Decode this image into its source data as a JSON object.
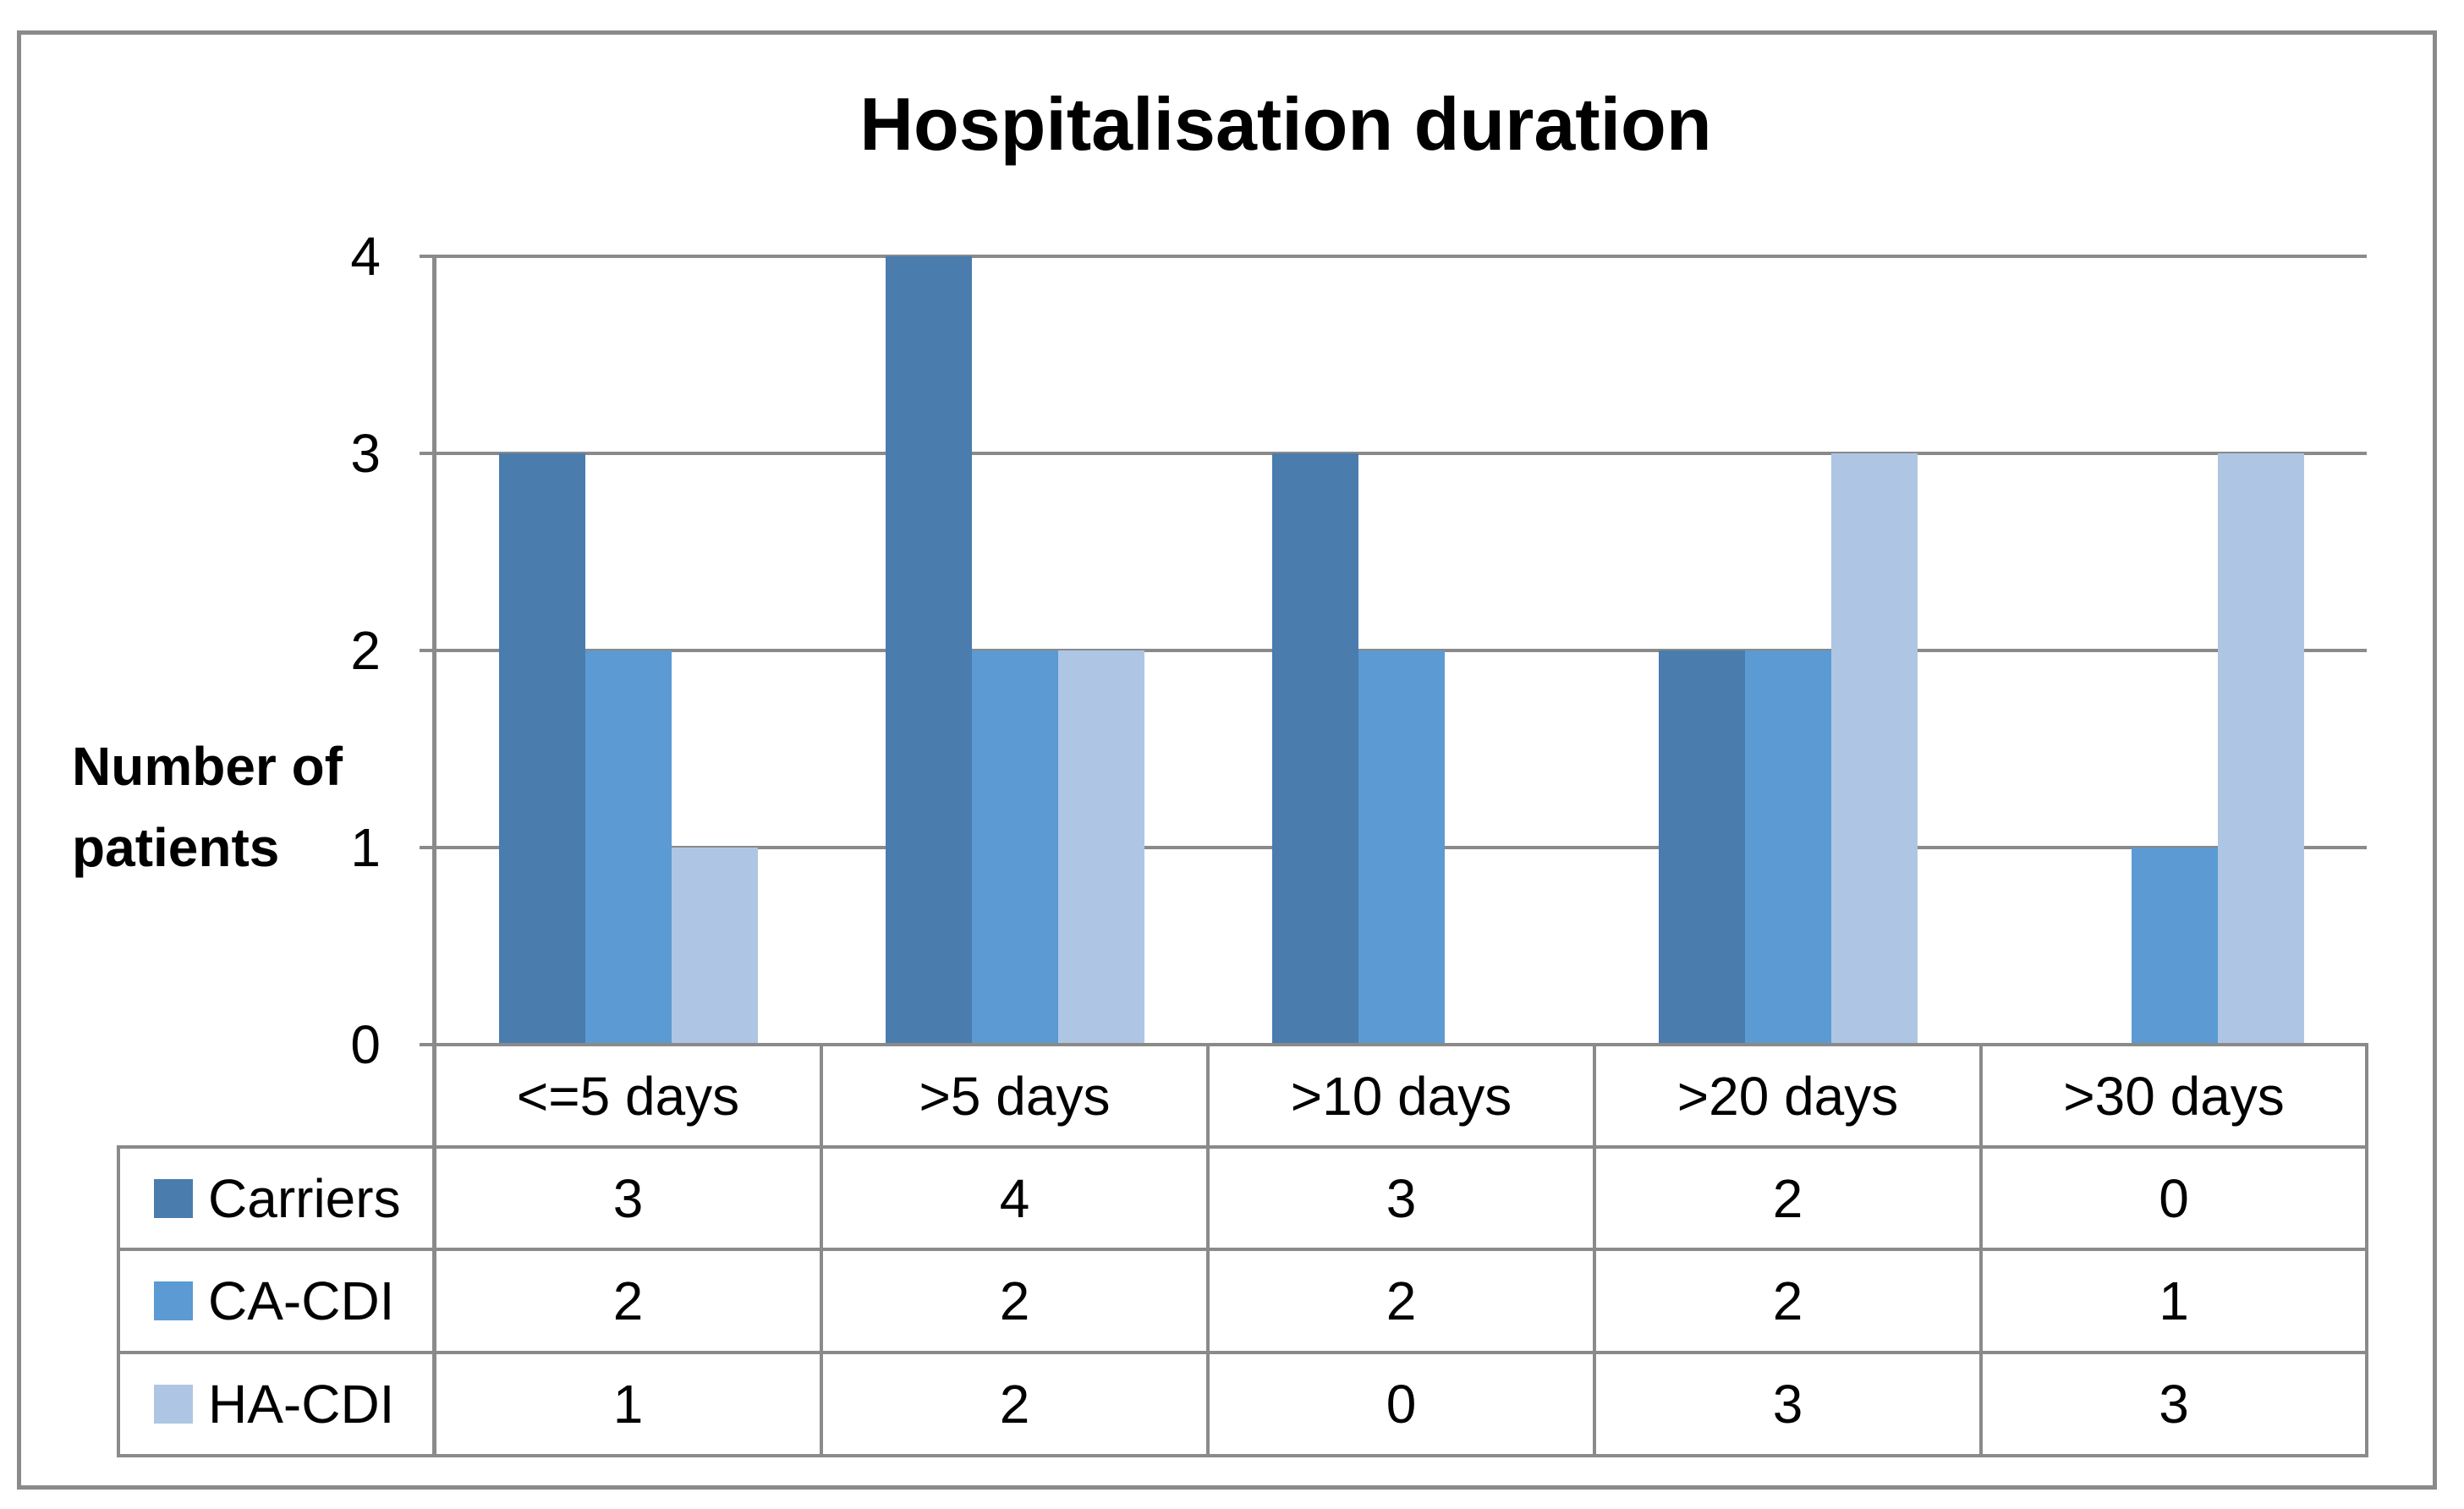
{
  "title": "Hospitalisation duration",
  "y_axis": {
    "label": "Number of patients",
    "ticks": [
      "0",
      "1",
      "2",
      "3",
      "4"
    ]
  },
  "chart_data": {
    "type": "bar",
    "title": "Hospitalisation duration",
    "categories": [
      "<=5 days",
      ">5 days",
      ">10 days",
      ">20 days",
      ">30 days"
    ],
    "series": [
      {
        "name": "Carriers",
        "values": [
          3,
          4,
          3,
          2,
          0
        ],
        "color": "#4A7CAE"
      },
      {
        "name": "CA-CDI",
        "values": [
          2,
          2,
          2,
          2,
          1
        ],
        "color": "#5B9AD2"
      },
      {
        "name": "HA-CDI",
        "values": [
          1,
          2,
          0,
          3,
          3
        ],
        "color": "#AEC6E3"
      }
    ],
    "xlabel": "",
    "ylabel": "Number of patients",
    "ylim": [
      0,
      4
    ],
    "yticks": [
      0,
      1,
      2,
      3,
      4
    ],
    "grid": "horizontal",
    "legend_position": "data-table-left"
  },
  "colors": {
    "border": "#8A8A8A",
    "background": "#FFFFFF",
    "text": "#000000"
  }
}
